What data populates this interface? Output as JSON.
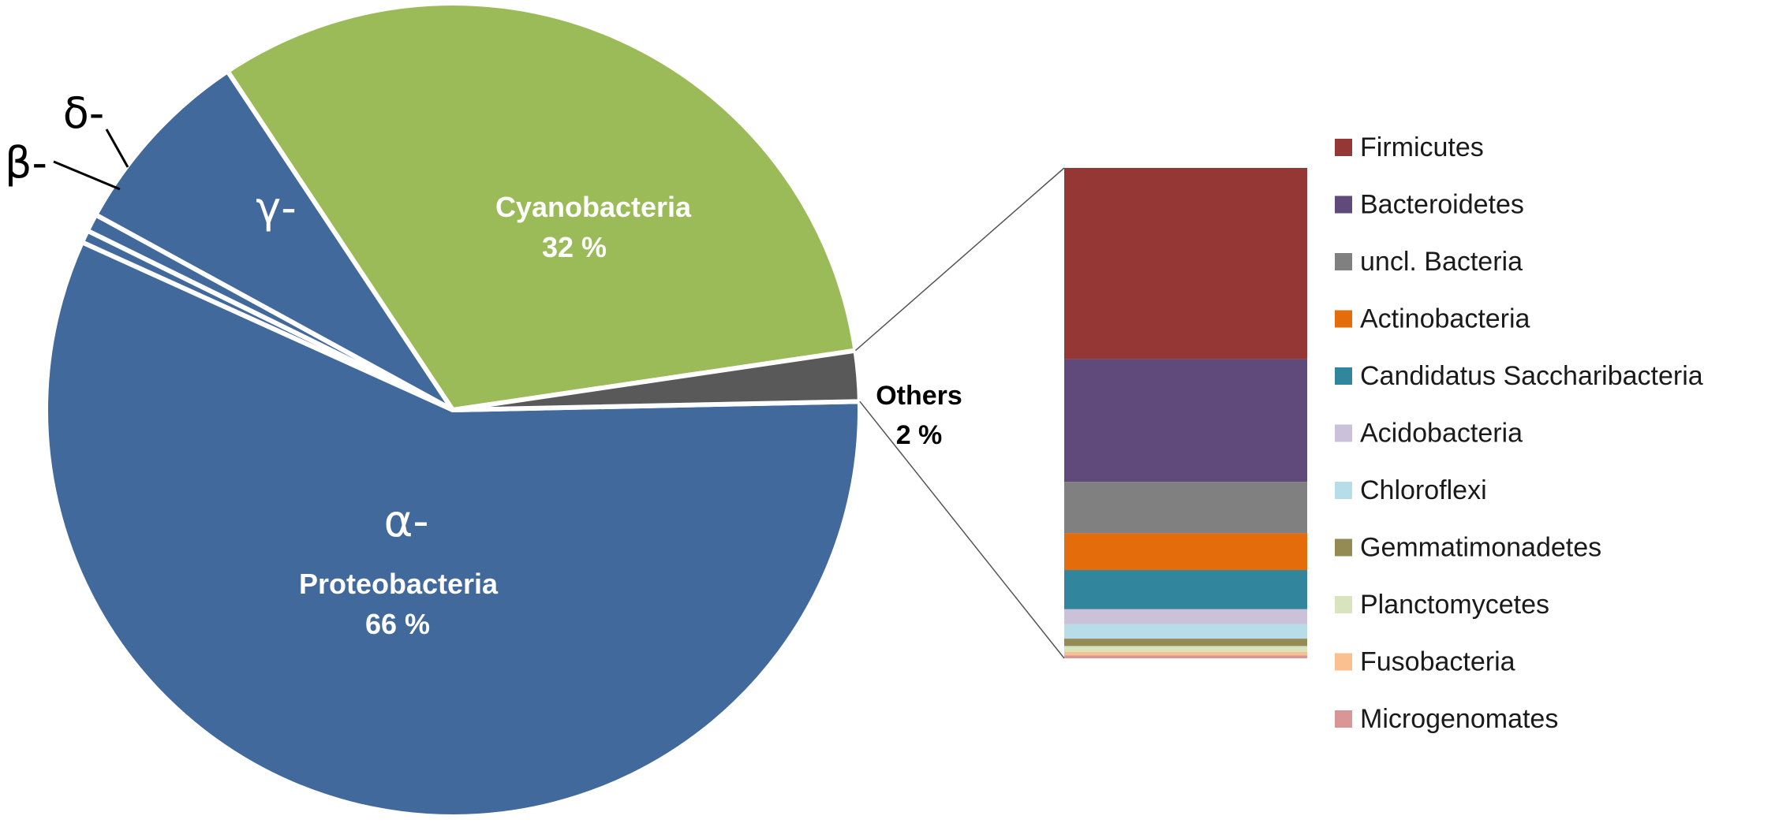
{
  "chart_data": [
    {
      "type": "pie",
      "slices": [
        {
          "label": "Proteobacteria",
          "group": "Proteobacteria",
          "subgroup": "α-",
          "value": 57.1,
          "color": "#41699b"
        },
        {
          "label": "Proteobacteria",
          "group": "Proteobacteria",
          "subgroup": "β-",
          "value": 0.5,
          "color": "#41699b"
        },
        {
          "label": "Proteobacteria",
          "group": "Proteobacteria",
          "subgroup": "δ-",
          "value": 0.7,
          "color": "#41699b"
        },
        {
          "label": "Proteobacteria",
          "group": "Proteobacteria",
          "subgroup": "γ-",
          "value": 7.7,
          "color": "#41699b"
        },
        {
          "label": "Cyanobacteria",
          "value": 32,
          "color": "#9bbb59"
        },
        {
          "label": "Others",
          "value": 2,
          "color": "#595959"
        }
      ],
      "labels": {
        "alpha": "α-",
        "beta": "β-",
        "gamma": "γ-",
        "delta": "δ-",
        "proteobacteria": "Proteobacteria",
        "proteobacteria_pct": "66 %",
        "cyanobacteria": "Cyanobacteria",
        "cyanobacteria_pct": "32 %",
        "others": "Others",
        "others_pct": "2 %"
      }
    },
    {
      "type": "bar",
      "stacked": true,
      "description_of": "Others",
      "series": [
        {
          "name": "Firmicutes",
          "value": 39,
          "color": "#953735"
        },
        {
          "name": "Bacteroidetes",
          "value": 25,
          "color": "#604a7b"
        },
        {
          "name": "uncl. Bacteria",
          "value": 10.5,
          "color": "#808080"
        },
        {
          "name": "Actinobacteria",
          "value": 7.5,
          "color": "#e46c0a"
        },
        {
          "name": "Candidatus Saccharibacteria",
          "value": 8,
          "color": "#31859c"
        },
        {
          "name": "Acidobacteria",
          "value": 3,
          "color": "#ccc1da"
        },
        {
          "name": "Chloroflexi",
          "value": 3,
          "color": "#b7dee8"
        },
        {
          "name": "Gemmatimonadetes",
          "value": 1.5,
          "color": "#948a54"
        },
        {
          "name": "Planctomycetes",
          "value": 1.2,
          "color": "#d7e4bd"
        },
        {
          "name": "Fusobacteria",
          "value": 0.7,
          "color": "#fac090"
        },
        {
          "name": "Microgenomates",
          "value": 0.6,
          "color": "#d99694"
        }
      ],
      "legend_position": "right"
    }
  ]
}
